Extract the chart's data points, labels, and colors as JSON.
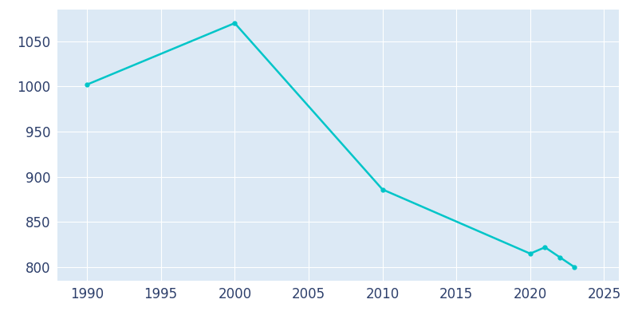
{
  "years": [
    1990,
    2000,
    2010,
    2020,
    2021,
    2022,
    2023
  ],
  "population": [
    1002,
    1070,
    886,
    815,
    822,
    811,
    800
  ],
  "line_color": "#00C5C8",
  "marker": "o",
  "marker_size": 3.5,
  "line_width": 1.8,
  "plot_bg_color": "#dce9f5",
  "fig_bg_color": "#ffffff",
  "xlim": [
    1988,
    2026
  ],
  "ylim": [
    785,
    1085
  ],
  "xticks": [
    1990,
    1995,
    2000,
    2005,
    2010,
    2015,
    2020,
    2025
  ],
  "yticks": [
    800,
    850,
    900,
    950,
    1000,
    1050
  ],
  "grid_color": "#ffffff",
  "tick_label_color": "#2d3f6b",
  "tick_fontsize": 12
}
